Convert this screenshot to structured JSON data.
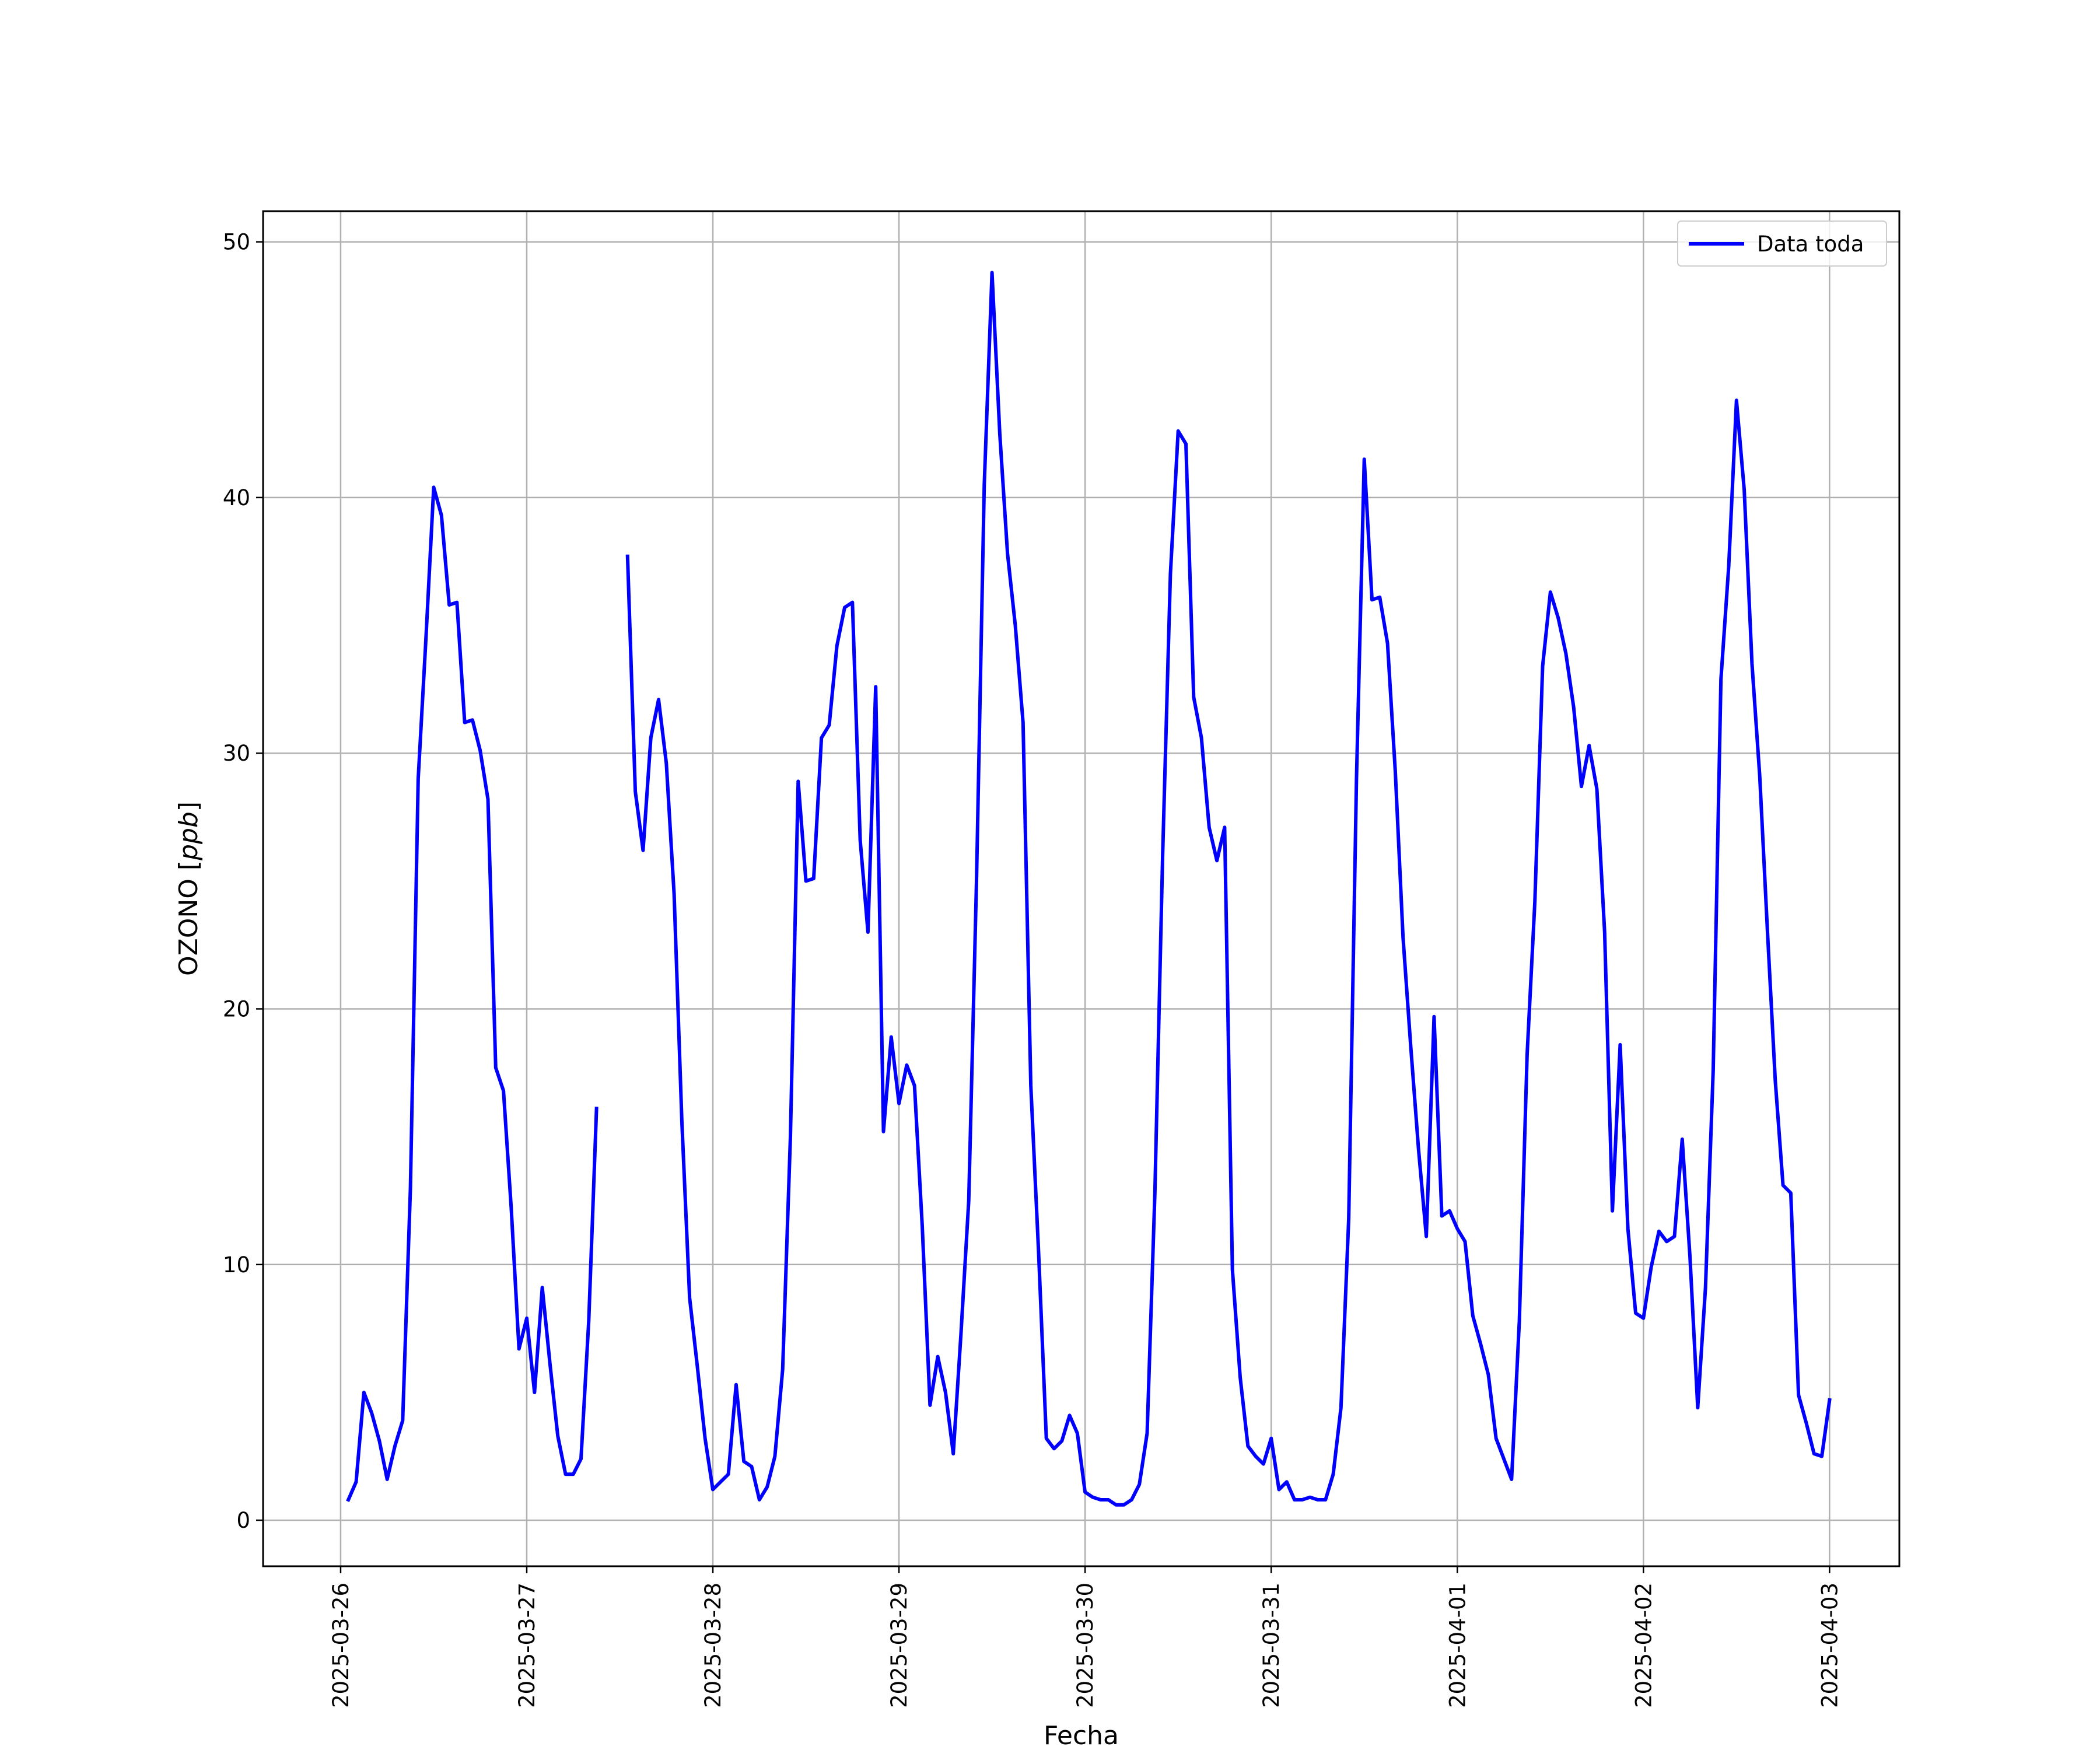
{
  "chart_data": {
    "type": "line",
    "xlabel": "Fecha",
    "ylabel": "OZONO",
    "ylabel_unit": "ppb",
    "x_tick_labels": [
      "2025-03-26",
      "2025-03-27",
      "2025-03-28",
      "2025-03-29",
      "2025-03-30",
      "2025-03-31",
      "2025-04-01",
      "2025-04-02",
      "2025-04-03"
    ],
    "y_ticks": [
      0,
      10,
      20,
      30,
      40,
      50
    ],
    "xlim": [
      "2025-03-25 14:00",
      "2025-04-03 09:00"
    ],
    "ylim": [
      -1.8,
      51.2
    ],
    "grid": true,
    "legend_position": "upper-right",
    "colors": {
      "series": "#0000ff",
      "grid": "#b0b0b0",
      "axes": "#000000"
    },
    "series": [
      {
        "name": "Data toda",
        "segments": [
          [
            [
              "2025-03-26 01:00",
              0.8
            ],
            [
              "2025-03-26 02:00",
              1.5
            ],
            [
              "2025-03-26 03:00",
              5.0
            ],
            [
              "2025-03-26 04:00",
              4.2
            ],
            [
              "2025-03-26 05:00",
              3.1
            ],
            [
              "2025-03-26 06:00",
              1.6
            ],
            [
              "2025-03-26 07:00",
              2.9
            ],
            [
              "2025-03-26 08:00",
              3.9
            ],
            [
              "2025-03-26 09:00",
              13.0
            ],
            [
              "2025-03-26 10:00",
              29.0
            ],
            [
              "2025-03-26 11:00",
              34.5
            ],
            [
              "2025-03-26 12:00",
              40.4
            ],
            [
              "2025-03-26 13:00",
              39.3
            ],
            [
              "2025-03-26 14:00",
              35.8
            ],
            [
              "2025-03-26 15:00",
              35.9
            ],
            [
              "2025-03-26 16:00",
              31.2
            ],
            [
              "2025-03-26 17:00",
              31.3
            ],
            [
              "2025-03-26 18:00",
              30.1
            ],
            [
              "2025-03-26 19:00",
              28.2
            ],
            [
              "2025-03-26 20:00",
              17.7
            ],
            [
              "2025-03-26 21:00",
              16.8
            ],
            [
              "2025-03-26 22:00",
              12.2
            ],
            [
              "2025-03-26 23:00",
              6.7
            ],
            [
              "2025-03-27 00:00",
              7.9
            ],
            [
              "2025-03-27 01:00",
              5.0
            ],
            [
              "2025-03-27 02:00",
              9.1
            ],
            [
              "2025-03-27 03:00",
              6.1
            ],
            [
              "2025-03-27 04:00",
              3.3
            ],
            [
              "2025-03-27 05:00",
              1.8
            ],
            [
              "2025-03-27 06:00",
              1.8
            ],
            [
              "2025-03-27 07:00",
              2.4
            ],
            [
              "2025-03-27 08:00",
              7.8
            ],
            [
              "2025-03-27 09:00",
              16.1
            ]
          ],
          [
            [
              "2025-03-27 13:00",
              37.7
            ],
            [
              "2025-03-27 14:00",
              28.5
            ],
            [
              "2025-03-27 15:00",
              26.2
            ],
            [
              "2025-03-27 16:00",
              30.6
            ],
            [
              "2025-03-27 17:00",
              32.1
            ],
            [
              "2025-03-27 18:00",
              29.6
            ],
            [
              "2025-03-27 19:00",
              24.5
            ],
            [
              "2025-03-27 20:00",
              15.6
            ],
            [
              "2025-03-27 21:00",
              8.7
            ],
            [
              "2025-03-27 22:00",
              6.0
            ],
            [
              "2025-03-27 23:00",
              3.2
            ],
            [
              "2025-03-28 00:00",
              1.2
            ],
            [
              "2025-03-28 01:00",
              1.5
            ],
            [
              "2025-03-28 02:00",
              1.8
            ],
            [
              "2025-03-28 03:00",
              5.3
            ],
            [
              "2025-03-28 04:00",
              2.3
            ],
            [
              "2025-03-28 05:00",
              2.1
            ],
            [
              "2025-03-28 06:00",
              0.8
            ],
            [
              "2025-03-28 07:00",
              1.3
            ],
            [
              "2025-03-28 08:00",
              2.5
            ],
            [
              "2025-03-28 09:00",
              5.9
            ],
            [
              "2025-03-28 10:00",
              15.0
            ],
            [
              "2025-03-28 11:00",
              28.9
            ],
            [
              "2025-03-28 12:00",
              25.0
            ],
            [
              "2025-03-28 13:00",
              25.1
            ],
            [
              "2025-03-28 14:00",
              30.6
            ],
            [
              "2025-03-28 15:00",
              31.1
            ],
            [
              "2025-03-28 16:00",
              34.2
            ],
            [
              "2025-03-28 17:00",
              35.7
            ],
            [
              "2025-03-28 18:00",
              35.9
            ],
            [
              "2025-03-28 19:00",
              26.6
            ],
            [
              "2025-03-28 20:00",
              23.0
            ],
            [
              "2025-03-28 21:00",
              32.6
            ],
            [
              "2025-03-28 22:00",
              15.2
            ],
            [
              "2025-03-28 23:00",
              18.9
            ],
            [
              "2025-03-29 00:00",
              16.3
            ],
            [
              "2025-03-29 01:00",
              17.8
            ],
            [
              "2025-03-29 02:00",
              17.0
            ],
            [
              "2025-03-29 03:00",
              11.5
            ],
            [
              "2025-03-29 04:00",
              4.5
            ],
            [
              "2025-03-29 05:00",
              6.4
            ],
            [
              "2025-03-29 06:00",
              5.0
            ],
            [
              "2025-03-29 07:00",
              2.6
            ],
            [
              "2025-03-29 08:00",
              7.3
            ],
            [
              "2025-03-29 09:00",
              12.5
            ],
            [
              "2025-03-29 10:00",
              25.0
            ],
            [
              "2025-03-29 11:00",
              40.5
            ],
            [
              "2025-03-29 12:00",
              48.8
            ],
            [
              "2025-03-29 13:00",
              42.5
            ],
            [
              "2025-03-29 14:00",
              37.8
            ],
            [
              "2025-03-29 15:00",
              35.0
            ],
            [
              "2025-03-29 16:00",
              31.2
            ],
            [
              "2025-03-29 17:00",
              17.0
            ],
            [
              "2025-03-29 18:00",
              10.5
            ],
            [
              "2025-03-29 19:00",
              3.2
            ],
            [
              "2025-03-29 20:00",
              2.8
            ],
            [
              "2025-03-29 21:00",
              3.1
            ],
            [
              "2025-03-29 22:00",
              4.1
            ],
            [
              "2025-03-29 23:00",
              3.4
            ],
            [
              "2025-03-30 00:00",
              1.1
            ],
            [
              "2025-03-30 01:00",
              0.9
            ],
            [
              "2025-03-30 02:00",
              0.8
            ],
            [
              "2025-03-30 03:00",
              0.8
            ],
            [
              "2025-03-30 04:00",
              0.6
            ],
            [
              "2025-03-30 05:00",
              0.6
            ],
            [
              "2025-03-30 06:00",
              0.8
            ],
            [
              "2025-03-30 07:00",
              1.4
            ],
            [
              "2025-03-30 08:00",
              3.4
            ],
            [
              "2025-03-30 09:00",
              12.8
            ],
            [
              "2025-03-30 10:00",
              26.0
            ],
            [
              "2025-03-30 11:00",
              37.0
            ],
            [
              "2025-03-30 12:00",
              42.6
            ],
            [
              "2025-03-30 13:00",
              42.1
            ],
            [
              "2025-03-30 14:00",
              32.2
            ],
            [
              "2025-03-30 15:00",
              30.6
            ],
            [
              "2025-03-30 16:00",
              27.1
            ],
            [
              "2025-03-30 17:00",
              25.8
            ],
            [
              "2025-03-30 18:00",
              27.1
            ],
            [
              "2025-03-30 19:00",
              9.8
            ],
            [
              "2025-03-30 20:00",
              5.6
            ],
            [
              "2025-03-30 21:00",
              2.9
            ],
            [
              "2025-03-30 22:00",
              2.5
            ],
            [
              "2025-03-30 23:00",
              2.2
            ],
            [
              "2025-03-31 00:00",
              3.2
            ],
            [
              "2025-03-31 01:00",
              1.2
            ],
            [
              "2025-03-31 02:00",
              1.5
            ],
            [
              "2025-03-31 03:00",
              0.8
            ],
            [
              "2025-03-31 04:00",
              0.8
            ],
            [
              "2025-03-31 05:00",
              0.9
            ],
            [
              "2025-03-31 06:00",
              0.8
            ],
            [
              "2025-03-31 07:00",
              0.8
            ],
            [
              "2025-03-31 08:00",
              1.8
            ],
            [
              "2025-03-31 09:00",
              4.4
            ],
            [
              "2025-03-31 10:00",
              11.8
            ],
            [
              "2025-03-31 11:00",
              29.0
            ],
            [
              "2025-03-31 12:00",
              41.5
            ],
            [
              "2025-03-31 13:00",
              36.0
            ],
            [
              "2025-03-31 14:00",
              36.1
            ],
            [
              "2025-03-31 15:00",
              34.3
            ],
            [
              "2025-03-31 16:00",
              29.3
            ],
            [
              "2025-03-31 17:00",
              22.8
            ],
            [
              "2025-03-31 18:00",
              18.5
            ],
            [
              "2025-03-31 19:00",
              14.5
            ],
            [
              "2025-03-31 20:00",
              11.1
            ],
            [
              "2025-03-31 21:00",
              19.7
            ],
            [
              "2025-03-31 22:00",
              11.9
            ],
            [
              "2025-03-31 23:00",
              12.1
            ],
            [
              "2025-04-01 00:00",
              11.4
            ],
            [
              "2025-04-01 01:00",
              10.9
            ],
            [
              "2025-04-01 02:00",
              8.0
            ],
            [
              "2025-04-01 03:00",
              6.9
            ],
            [
              "2025-04-01 04:00",
              5.7
            ],
            [
              "2025-04-01 05:00",
              3.2
            ],
            [
              "2025-04-01 06:00",
              2.4
            ],
            [
              "2025-04-01 07:00",
              1.6
            ],
            [
              "2025-04-01 08:00",
              7.8
            ],
            [
              "2025-04-01 09:00",
              18.2
            ],
            [
              "2025-04-01 10:00",
              24.2
            ],
            [
              "2025-04-01 11:00",
              33.4
            ],
            [
              "2025-04-01 12:00",
              36.3
            ],
            [
              "2025-04-01 13:00",
              35.3
            ],
            [
              "2025-04-01 14:00",
              33.9
            ],
            [
              "2025-04-01 15:00",
              31.8
            ],
            [
              "2025-04-01 16:00",
              28.7
            ],
            [
              "2025-04-01 17:00",
              30.3
            ],
            [
              "2025-04-01 18:00",
              28.6
            ],
            [
              "2025-04-01 19:00",
              23.0
            ],
            [
              "2025-04-01 20:00",
              12.1
            ],
            [
              "2025-04-01 21:00",
              18.6
            ],
            [
              "2025-04-01 22:00",
              11.4
            ],
            [
              "2025-04-01 23:00",
              8.1
            ],
            [
              "2025-04-02 00:00",
              7.9
            ],
            [
              "2025-04-02 01:00",
              9.9
            ],
            [
              "2025-04-02 02:00",
              11.3
            ],
            [
              "2025-04-02 03:00",
              10.9
            ],
            [
              "2025-04-02 04:00",
              11.1
            ],
            [
              "2025-04-02 05:00",
              14.9
            ],
            [
              "2025-04-02 06:00",
              10.3
            ],
            [
              "2025-04-02 07:00",
              4.4
            ],
            [
              "2025-04-02 08:00",
              9.1
            ],
            [
              "2025-04-02 09:00",
              17.6
            ],
            [
              "2025-04-02 10:00",
              32.9
            ],
            [
              "2025-04-02 11:00",
              37.3
            ],
            [
              "2025-04-02 12:00",
              43.8
            ],
            [
              "2025-04-02 13:00",
              40.3
            ],
            [
              "2025-04-02 14:00",
              33.5
            ],
            [
              "2025-04-02 15:00",
              29.1
            ],
            [
              "2025-04-02 16:00",
              23.0
            ],
            [
              "2025-04-02 17:00",
              17.2
            ],
            [
              "2025-04-02 18:00",
              13.1
            ],
            [
              "2025-04-02 19:00",
              12.8
            ],
            [
              "2025-04-02 20:00",
              4.9
            ],
            [
              "2025-04-02 21:00",
              3.8
            ],
            [
              "2025-04-02 22:00",
              2.6
            ],
            [
              "2025-04-02 23:00",
              2.5
            ],
            [
              "2025-04-03 00:00",
              4.7
            ]
          ]
        ]
      }
    ]
  }
}
